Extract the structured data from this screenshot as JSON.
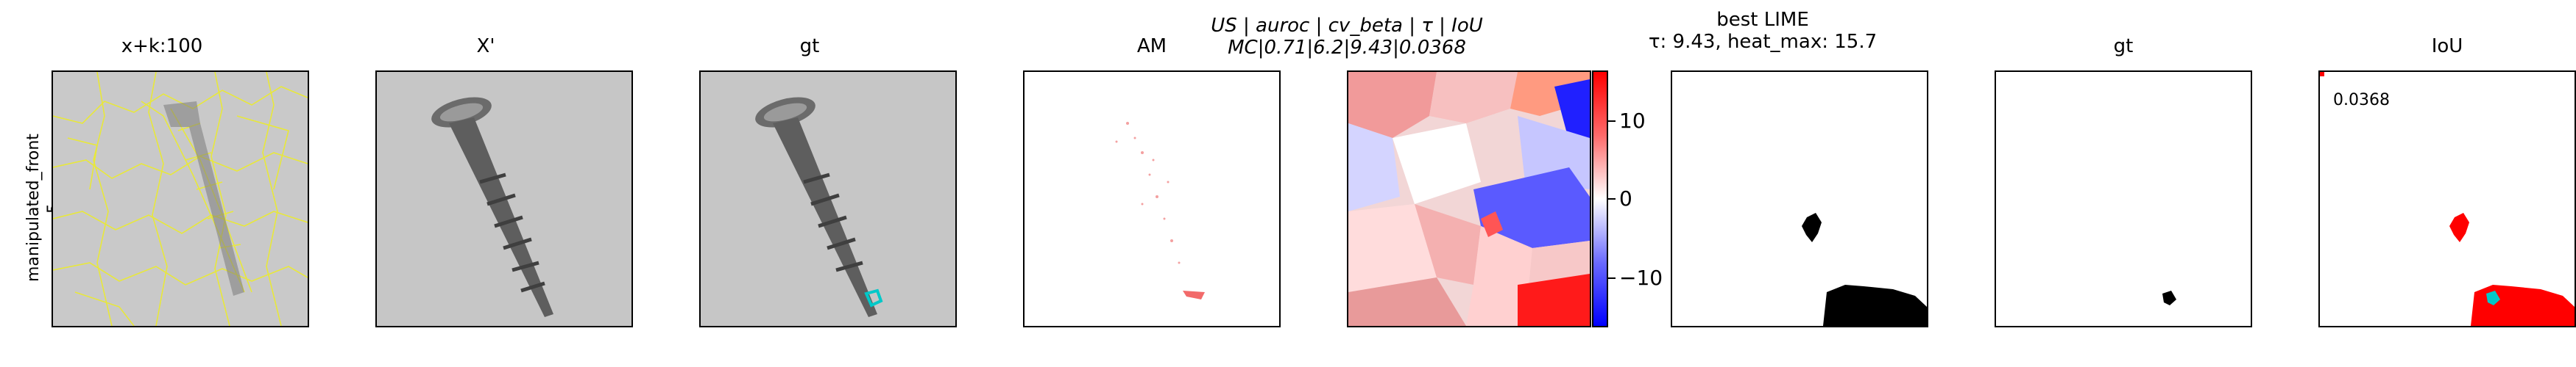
{
  "row_label": {
    "line1": "manipulated_front",
    "line2": "5"
  },
  "panels": [
    {
      "title": "x+k:100"
    },
    {
      "title": "X'"
    },
    {
      "title": "gt"
    },
    {
      "title": "AM"
    },
    {
      "title_line1": "US | auroc | cv_beta | τ | IoU",
      "title_line2": "MC|0.71|6.2|9.43|0.0368"
    },
    {
      "title_line1": "best LIME",
      "title_line2": "τ: 9.43, heat_max: 15.7"
    },
    {
      "title": "gt"
    },
    {
      "title": "IoU",
      "value_label": "0.0368"
    }
  ],
  "colorbar": {
    "ticks": [
      "10",
      "0",
      "−10"
    ],
    "colors": {
      "max": "#ff0000",
      "mid": "#ffffff",
      "min": "#0000ff"
    }
  },
  "colors": {
    "superpixel_edges": "#e8e83a",
    "gt_marker": "#00c8c8",
    "mask": "#000000",
    "iou_overlap": "#ff0000"
  }
}
